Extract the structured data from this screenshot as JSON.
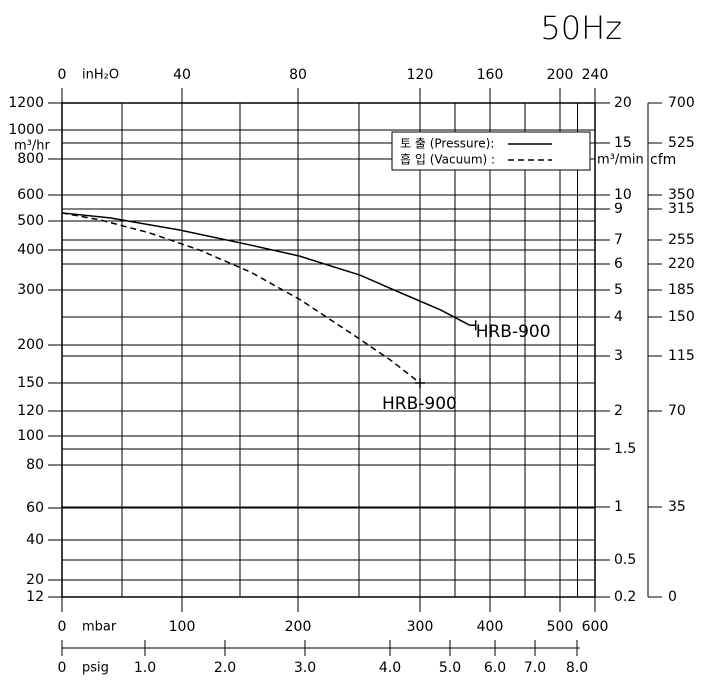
{
  "chart_data": {
    "type": "line",
    "title": "50Hz",
    "ylabel": "m³/hr",
    "y2label": "m³/min",
    "y3label": "cfm",
    "xlabel": "mbar",
    "x2label": "inH₂O",
    "x3label": "psig",
    "xlim": [
      0,
      600
    ],
    "xticks": [
      0,
      100,
      200,
      300,
      400,
      500,
      600
    ],
    "x2lim": [
      0,
      240
    ],
    "x2ticks": [
      0,
      40,
      80,
      120,
      160,
      200,
      240
    ],
    "x3lim": [
      0,
      8
    ],
    "x3ticks": [
      0,
      {
        "value": 1,
        "label": "1.0"
      },
      {
        "value": 2,
        "label": "2.0"
      },
      {
        "value": 3,
        "label": "3.0"
      },
      {
        "value": 4,
        "label": "4.0"
      },
      {
        "value": 5,
        "label": "5.0"
      },
      {
        "value": 6,
        "label": "6.0"
      },
      {
        "value": 7,
        "label": "7.0"
      },
      {
        "value": 8,
        "label": "8.0"
      }
    ],
    "ylim": [
      12,
      1200
    ],
    "yticks": [
      1200,
      1000,
      800,
      600,
      500,
      400,
      300,
      200,
      150,
      120,
      100,
      80,
      60,
      40,
      20,
      12
    ],
    "y2lim": [
      0.2,
      20
    ],
    "y2ticks": [
      20,
      15,
      10,
      9,
      7,
      6,
      5,
      4,
      3,
      2,
      1.5,
      1,
      0.5,
      0.2
    ],
    "y3lim": [
      0,
      700
    ],
    "y3ticks": [
      700,
      525,
      350,
      315,
      255,
      220,
      185,
      150,
      115,
      70,
      35,
      0
    ],
    "grid": true,
    "legend": "upper right",
    "series": [
      {
        "name": "토 출 (Pressure):",
        "color": "#000000",
        "dash": false,
        "x": [
          0,
          40,
          98,
          159,
          201,
          251,
          284,
          329,
          371
        ],
        "values": [
          531,
          512,
          469,
          417,
          385,
          337,
          295,
          264,
          236
        ]
      },
      {
        "name": "흡 입 (Vacuum) :",
        "color": "#000000",
        "dash": true,
        "x": [
          0,
          32,
          73,
          115,
          159,
          202,
          243,
          276,
          300
        ],
        "values": [
          531,
          504,
          459,
          400,
          345,
          282,
          222,
          180,
          150
        ]
      }
    ],
    "annotations": [
      "HRB-900",
      "HRB-900"
    ]
  }
}
